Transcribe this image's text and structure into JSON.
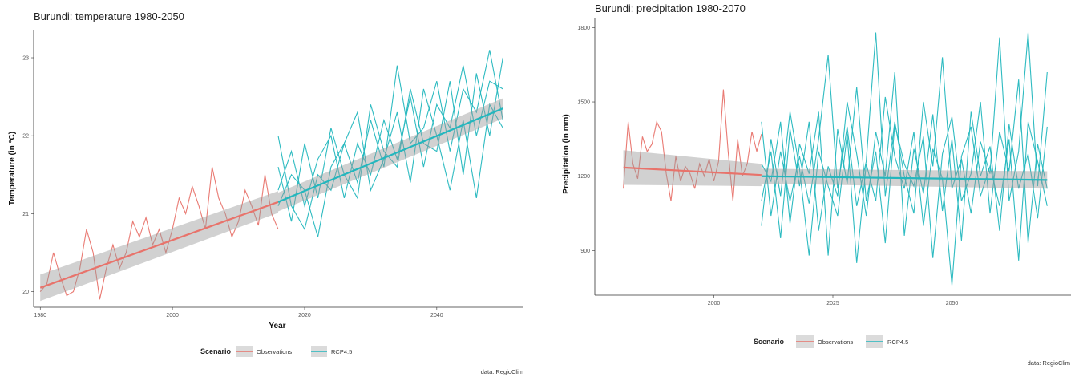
{
  "colors": {
    "observations": "#e8736b",
    "rcp45": "#23b7be",
    "ribbon": "#999999",
    "axis": "#333333"
  },
  "chart_data": [
    {
      "type": "line",
      "title": "Burundi: temperature 1980-2050",
      "xlabel": "Year",
      "ylabel": "Temperature (in °C)",
      "xlim": [
        1979,
        2053
      ],
      "ylim": [
        19.8,
        23.35
      ],
      "xticks": [
        1980,
        2000,
        2020,
        2040
      ],
      "yticks": [
        20,
        21,
        22,
        23
      ],
      "xtick_labels": [
        "1980",
        "2000",
        "2020",
        "2040"
      ],
      "ytick_labels": [
        "20",
        "21",
        "22",
        "23"
      ],
      "legend": {
        "title": "Scenario",
        "position": "bottom",
        "entries": [
          "Observations",
          "RCP4.5"
        ]
      },
      "caption": "data: RegioClim",
      "series": [
        {
          "name": "Observations",
          "color_key": "observations",
          "x": [
            1980,
            1981,
            1982,
            1983,
            1984,
            1985,
            1986,
            1987,
            1988,
            1989,
            1990,
            1991,
            1992,
            1993,
            1994,
            1995,
            1996,
            1997,
            1998,
            1999,
            2000,
            2001,
            2002,
            2003,
            2004,
            2005,
            2006,
            2007,
            2008,
            2009,
            2010,
            2011,
            2012,
            2013,
            2014,
            2015,
            2016
          ],
          "y": [
            20.0,
            20.1,
            20.5,
            20.2,
            19.95,
            20.0,
            20.3,
            20.8,
            20.5,
            19.9,
            20.3,
            20.6,
            20.3,
            20.5,
            20.9,
            20.7,
            20.95,
            20.6,
            20.8,
            20.5,
            20.8,
            21.2,
            21.0,
            21.35,
            21.1,
            20.8,
            21.6,
            21.2,
            21.0,
            20.7,
            20.9,
            21.3,
            21.1,
            20.85,
            21.5,
            21.0,
            20.8
          ]
        },
        {
          "name": "RCP4.5 run 1",
          "color_key": "rcp45",
          "x": [
            2016,
            2018,
            2020,
            2022,
            2024,
            2026,
            2028,
            2030,
            2032,
            2034,
            2036,
            2038,
            2040,
            2042,
            2044,
            2046,
            2048,
            2050
          ],
          "y": [
            22.0,
            21.1,
            20.8,
            21.5,
            21.3,
            21.9,
            21.4,
            22.2,
            21.6,
            22.9,
            21.9,
            22.1,
            22.7,
            21.8,
            22.6,
            22.3,
            23.1,
            22.2
          ]
        },
        {
          "name": "RCP4.5 run 2",
          "color_key": "rcp45",
          "x": [
            2016,
            2018,
            2020,
            2022,
            2024,
            2026,
            2028,
            2030,
            2032,
            2034,
            2036,
            2038,
            2040,
            2042,
            2044,
            2046,
            2048,
            2050
          ],
          "y": [
            21.3,
            21.8,
            21.1,
            21.7,
            22.0,
            21.2,
            21.9,
            21.5,
            22.2,
            21.7,
            22.5,
            21.6,
            22.4,
            22.1,
            22.9,
            22.0,
            22.7,
            22.6
          ]
        },
        {
          "name": "RCP4.5 run 3",
          "color_key": "rcp45",
          "x": [
            2016,
            2018,
            2020,
            2022,
            2024,
            2026,
            2028,
            2030,
            2032,
            2034,
            2036,
            2038,
            2040,
            2042,
            2044,
            2046,
            2048,
            2050
          ],
          "y": [
            21.6,
            20.9,
            21.9,
            21.2,
            22.1,
            21.5,
            21.2,
            22.4,
            21.8,
            21.6,
            22.6,
            21.9,
            21.8,
            22.7,
            21.5,
            22.8,
            22.0,
            23.0
          ]
        },
        {
          "name": "RCP4.5 run 4",
          "color_key": "rcp45",
          "x": [
            2016,
            2018,
            2020,
            2022,
            2024,
            2026,
            2028,
            2030,
            2032,
            2034,
            2036,
            2038,
            2040,
            2042,
            2044,
            2046,
            2048,
            2050
          ],
          "y": [
            21.1,
            21.5,
            21.3,
            20.7,
            21.6,
            21.9,
            22.3,
            21.3,
            21.7,
            22.3,
            21.4,
            22.6,
            22.0,
            21.3,
            22.2,
            21.2,
            22.4,
            22.1
          ]
        }
      ],
      "trends": [
        {
          "name": "Observations",
          "color_key": "observations",
          "x": [
            1980,
            2016
          ],
          "y": [
            20.05,
            21.15
          ],
          "band": [
            0.17,
            0.14
          ]
        },
        {
          "name": "RCP4.5",
          "color_key": "rcp45",
          "x": [
            2016,
            2050
          ],
          "y": [
            21.15,
            22.35
          ],
          "band": [
            0.12,
            0.13
          ]
        }
      ]
    },
    {
      "type": "line",
      "title": "Burundi: precipitation 1980-2070",
      "xlabel": "",
      "ylabel": "Precipitation (in mm)",
      "xlim": [
        1975,
        2075
      ],
      "ylim": [
        720,
        1840
      ],
      "xticks": [
        2000,
        2025,
        2050
      ],
      "yticks": [
        900,
        1200,
        1500,
        1800
      ],
      "xtick_labels": [
        "2000",
        "2025",
        "2050"
      ],
      "ytick_labels": [
        "900",
        "1200",
        "1500",
        "1800"
      ],
      "legend": {
        "title": "Scenario",
        "position": "bottom",
        "entries": [
          "Observations",
          "RCP4.5"
        ]
      },
      "caption": "data: RegioClim",
      "series": [
        {
          "name": "Observations",
          "color_key": "observations",
          "x": [
            1981,
            1982,
            1983,
            1984,
            1985,
            1986,
            1987,
            1988,
            1989,
            1990,
            1991,
            1992,
            1993,
            1994,
            1995,
            1996,
            1997,
            1998,
            1999,
            2000,
            2001,
            2002,
            2003,
            2004,
            2005,
            2006,
            2007,
            2008,
            2009,
            2010
          ],
          "y": [
            1150,
            1420,
            1250,
            1190,
            1360,
            1300,
            1330,
            1420,
            1380,
            1210,
            1100,
            1280,
            1180,
            1240,
            1210,
            1150,
            1250,
            1200,
            1270,
            1180,
            1260,
            1550,
            1300,
            1100,
            1350,
            1200,
            1250,
            1380,
            1300,
            1370
          ]
        },
        {
          "name": "RCP4.5 run 1",
          "color_key": "rcp45",
          "x": [
            2010,
            2012,
            2014,
            2016,
            2018,
            2020,
            2022,
            2024,
            2026,
            2028,
            2030,
            2032,
            2034,
            2036,
            2038,
            2040,
            2042,
            2044,
            2046,
            2048,
            2050,
            2052,
            2054,
            2056,
            2058,
            2060,
            2062,
            2064,
            2066,
            2068,
            2070
          ],
          "y": [
            1420,
            1040,
            1300,
            1100,
            1280,
            1090,
            1350,
            1690,
            1150,
            1400,
            1080,
            1260,
            1780,
            1120,
            1420,
            1200,
            1050,
            1500,
            1240,
            1680,
            1150,
            1270,
            1050,
            1340,
            1210,
            1760,
            1100,
            1300,
            1780,
            1160,
            1620
          ]
        },
        {
          "name": "RCP4.5 run 2",
          "color_key": "rcp45",
          "x": [
            2010,
            2012,
            2014,
            2016,
            2018,
            2020,
            2022,
            2024,
            2026,
            2028,
            2030,
            2032,
            2034,
            2036,
            2038,
            2040,
            2042,
            2044,
            2046,
            2048,
            2050,
            2052,
            2054,
            2056,
            2058,
            2060,
            2062,
            2064,
            2066,
            2068,
            2070
          ],
          "y": [
            1100,
            1300,
            950,
            1390,
            1160,
            1420,
            980,
            1240,
            1120,
            1500,
            1290,
            1040,
            1380,
            1200,
            1620,
            960,
            1310,
            1130,
            1450,
            1060,
            1350,
            940,
            1460,
            1200,
            1320,
            980,
            1410,
            1150,
            1290,
            1030,
            1400
          ]
        },
        {
          "name": "RCP4.5 run 3",
          "color_key": "rcp45",
          "x": [
            2010,
            2012,
            2014,
            2016,
            2018,
            2020,
            2022,
            2024,
            2026,
            2028,
            2030,
            2032,
            2034,
            2036,
            2038,
            2040,
            2042,
            2044,
            2046,
            2048,
            2050,
            2052,
            2054,
            2056,
            2058,
            2060,
            2062,
            2064,
            2066,
            2068,
            2070
          ],
          "y": [
            1250,
            1180,
            1420,
            1010,
            1330,
            1210,
            1460,
            880,
            1390,
            1170,
            1560,
            1100,
            1300,
            930,
            1410,
            1250,
            1160,
            1360,
            870,
            1290,
            1440,
            1100,
            1210,
            1500,
            1050,
            1380,
            1220,
            1590,
            930,
            1330,
            1150
          ]
        },
        {
          "name": "RCP4.5 run 4",
          "color_key": "rcp45",
          "x": [
            2010,
            2012,
            2014,
            2016,
            2018,
            2020,
            2022,
            2024,
            2026,
            2028,
            2030,
            2032,
            2034,
            2036,
            2038,
            2040,
            2042,
            2044,
            2046,
            2048,
            2050,
            2052,
            2054,
            2056,
            2058,
            2060,
            2062,
            2064,
            2066,
            2068,
            2070
          ],
          "y": [
            1000,
            1350,
            1120,
            1460,
            1230,
            880,
            1300,
            1160,
            1040,
            1370,
            850,
            1250,
            1100,
            1520,
            1280,
            1150,
            1380,
            1000,
            1310,
            1190,
            760,
            1280,
            1400,
            1120,
            1240,
            1080,
            1350,
            860,
            1420,
            1260,
            1080
          ]
        }
      ],
      "trends": [
        {
          "name": "Observations",
          "color_key": "observations",
          "x": [
            1981,
            2010
          ],
          "y": [
            1235,
            1205
          ],
          "band": [
            70,
            45
          ]
        },
        {
          "name": "RCP4.5",
          "color_key": "rcp45",
          "x": [
            2010,
            2070
          ],
          "y": [
            1200,
            1185
          ],
          "band": [
            30,
            35
          ]
        }
      ]
    }
  ]
}
